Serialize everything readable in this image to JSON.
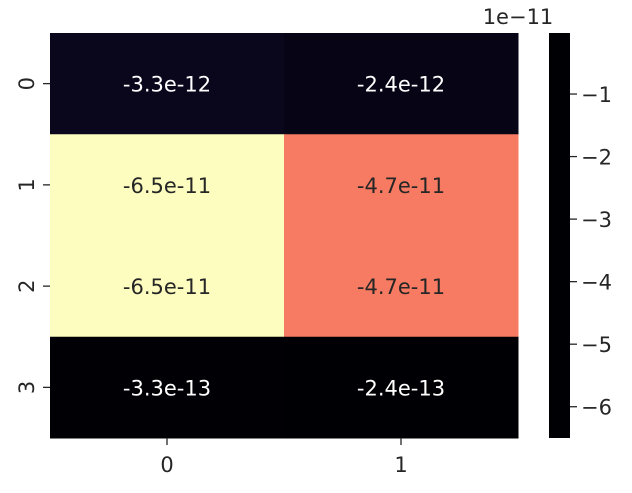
{
  "chart_data": {
    "type": "heatmap",
    "rows": [
      "0",
      "1",
      "2",
      "3"
    ],
    "columns": [
      "0",
      "1"
    ],
    "values": [
      [
        -3.3e-12,
        -2.4e-12
      ],
      [
        -6.5e-11,
        -4.7e-11
      ],
      [
        -6.5e-11,
        -4.7e-11
      ],
      [
        -3.3e-13,
        -2.4e-13
      ]
    ],
    "cell_labels": [
      [
        "-3.3e-12",
        "-2.4e-12"
      ],
      [
        "-6.5e-11",
        "-4.7e-11"
      ],
      [
        "-6.5e-11",
        "-4.7e-11"
      ],
      [
        "-3.3e-13",
        "-2.4e-13"
      ]
    ],
    "colormap": "magma",
    "colormap_stops": [
      "#000004",
      "#180f3d",
      "#440f76",
      "#721f81",
      "#9e2f7f",
      "#cd4071",
      "#f1605d",
      "#fd9668",
      "#feca8d",
      "#fcfdbf"
    ],
    "vmin": -6.5e-11,
    "vmax": -2.4e-13,
    "colorbar": {
      "ticks": [
        -1,
        -2,
        -3,
        -4,
        -5,
        -6
      ],
      "tick_labels": [
        "−1",
        "−2",
        "−3",
        "−4",
        "−5",
        "−6"
      ],
      "scale_factor": 1e-11,
      "offset_label": "1e−11"
    },
    "label_text_colors": {
      "on_dark": "#ffffff",
      "on_light": "#262626"
    }
  }
}
